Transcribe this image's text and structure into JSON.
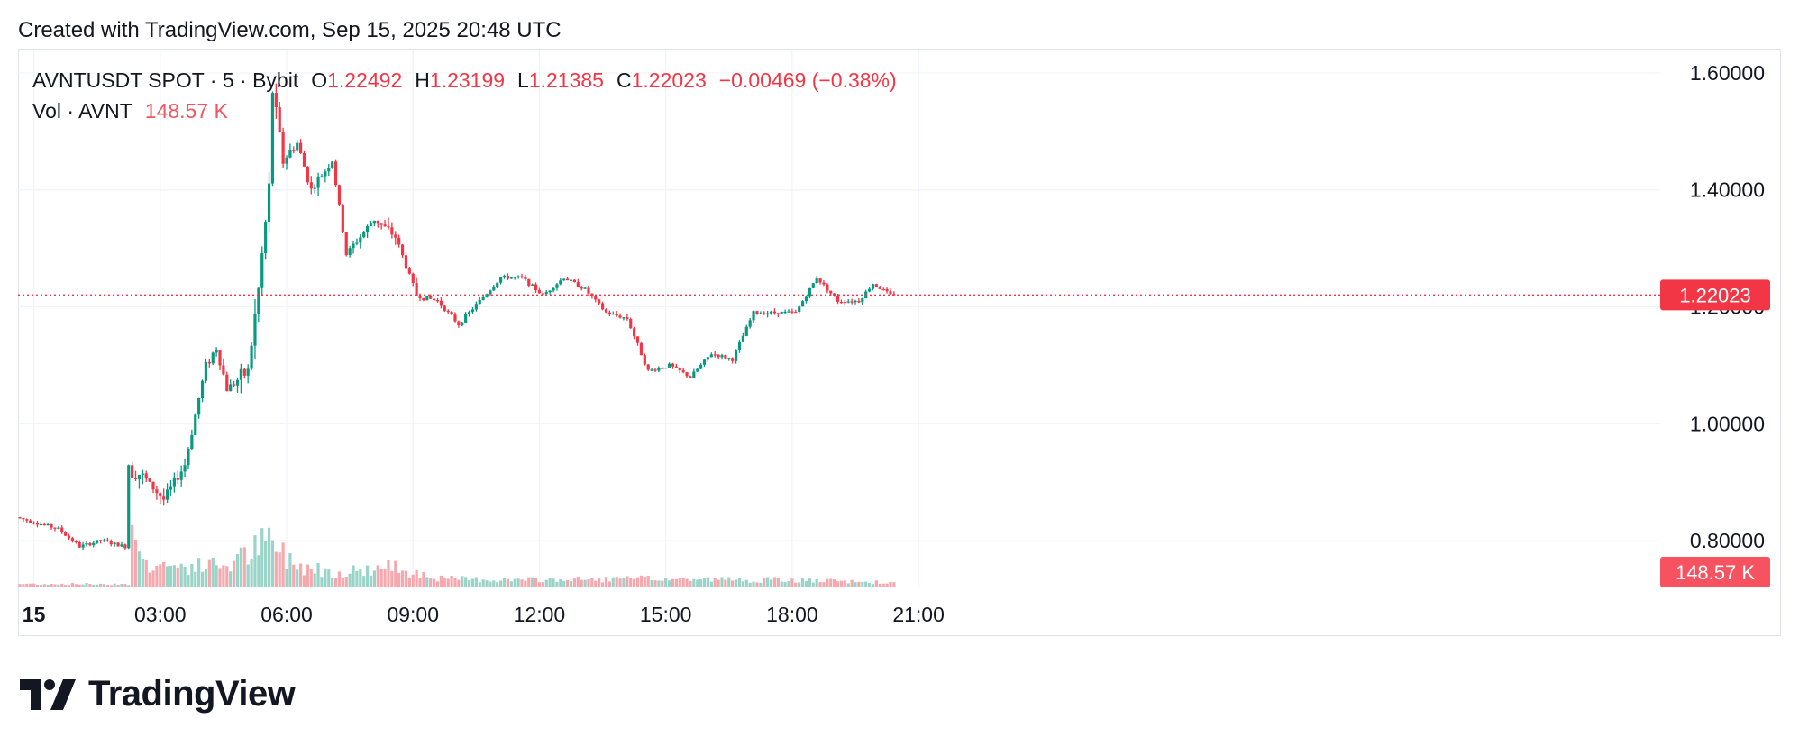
{
  "header": {
    "caption": "Created with TradingView.com, Sep 15, 2025 20:48 UTC"
  },
  "legend": {
    "symbol": "AVNTUSDT SPOT · 5 · Bybit",
    "open_label": "O",
    "open": "1.22492",
    "high_label": "H",
    "high": "1.23199",
    "low_label": "L",
    "low": "1.21385",
    "close_label": "C",
    "close": "1.22023",
    "change": "−0.00469 (−0.38%)",
    "vol_label": "Vol · AVNT",
    "vol_value": "148.57 K"
  },
  "price_axis": {
    "ticks": [
      "0.80000",
      "1.00000",
      "1.20000",
      "1.40000",
      "1.60000"
    ]
  },
  "time_axis": {
    "ticks": [
      "15",
      "03:00",
      "06:00",
      "09:00",
      "12:00",
      "15:00",
      "18:00",
      "21:00"
    ]
  },
  "badges": {
    "last_price": "1.22023",
    "last_volume": "148.57 K"
  },
  "footer": {
    "brand": "TradingView"
  },
  "colors": {
    "up": "#089981",
    "down": "#f23645",
    "grid": "#f0f3fa",
    "text": "#131722"
  },
  "chart_data": {
    "type": "candlestick",
    "symbol": "AVNTUSDT",
    "interval_minutes": 5,
    "price_range": [
      0.72,
      1.64
    ],
    "last_price": 1.22023,
    "anchors": [
      {
        "t": "00:00",
        "p": 0.84
      },
      {
        "t": "00:30",
        "p": 0.83
      },
      {
        "t": "01:00",
        "p": 0.82
      },
      {
        "t": "01:30",
        "p": 0.79
      },
      {
        "t": "02:00",
        "p": 0.8
      },
      {
        "t": "02:35",
        "p": 0.79
      },
      {
        "t": "02:40",
        "p": 0.93
      },
      {
        "t": "03:00",
        "p": 0.91
      },
      {
        "t": "03:30",
        "p": 0.87
      },
      {
        "t": "04:00",
        "p": 0.93
      },
      {
        "t": "04:30",
        "p": 1.1
      },
      {
        "t": "04:45",
        "p": 1.13
      },
      {
        "t": "05:00",
        "p": 1.06
      },
      {
        "t": "05:30",
        "p": 1.09
      },
      {
        "t": "05:45",
        "p": 1.23
      },
      {
        "t": "06:00",
        "p": 1.4
      },
      {
        "t": "06:05",
        "p": 1.57
      },
      {
        "t": "06:20",
        "p": 1.45
      },
      {
        "t": "06:40",
        "p": 1.48
      },
      {
        "t": "07:00",
        "p": 1.4
      },
      {
        "t": "07:30",
        "p": 1.45
      },
      {
        "t": "07:50",
        "p": 1.29
      },
      {
        "t": "08:30",
        "p": 1.35
      },
      {
        "t": "09:00",
        "p": 1.32
      },
      {
        "t": "09:30",
        "p": 1.22
      },
      {
        "t": "10:00",
        "p": 1.21
      },
      {
        "t": "10:30",
        "p": 1.17
      },
      {
        "t": "11:00",
        "p": 1.21
      },
      {
        "t": "11:30",
        "p": 1.25
      },
      {
        "t": "12:00",
        "p": 1.25
      },
      {
        "t": "12:30",
        "p": 1.22
      },
      {
        "t": "13:00",
        "p": 1.25
      },
      {
        "t": "13:30",
        "p": 1.23
      },
      {
        "t": "14:00",
        "p": 1.19
      },
      {
        "t": "14:30",
        "p": 1.18
      },
      {
        "t": "15:00",
        "p": 1.09
      },
      {
        "t": "15:30",
        "p": 1.1
      },
      {
        "t": "16:00",
        "p": 1.08
      },
      {
        "t": "16:30",
        "p": 1.12
      },
      {
        "t": "17:00",
        "p": 1.11
      },
      {
        "t": "17:30",
        "p": 1.19
      },
      {
        "t": "18:00",
        "p": 1.19
      },
      {
        "t": "18:30",
        "p": 1.19
      },
      {
        "t": "19:00",
        "p": 1.25
      },
      {
        "t": "19:30",
        "p": 1.21
      },
      {
        "t": "20:00",
        "p": 1.21
      },
      {
        "t": "20:20",
        "p": 1.24
      },
      {
        "t": "20:45",
        "p": 1.22
      }
    ],
    "volume_anchors": [
      {
        "t": "00:00",
        "v": 0.04
      },
      {
        "t": "02:35",
        "v": 0.04
      },
      {
        "t": "02:40",
        "v": 0.75
      },
      {
        "t": "03:00",
        "v": 0.35
      },
      {
        "t": "04:00",
        "v": 0.3
      },
      {
        "t": "05:00",
        "v": 0.35
      },
      {
        "t": "05:55",
        "v": 0.7
      },
      {
        "t": "06:30",
        "v": 0.35
      },
      {
        "t": "07:30",
        "v": 0.22
      },
      {
        "t": "09:00",
        "v": 0.3
      },
      {
        "t": "10:00",
        "v": 0.12
      },
      {
        "t": "12:00",
        "v": 0.1
      },
      {
        "t": "15:00",
        "v": 0.12
      },
      {
        "t": "18:00",
        "v": 0.1
      },
      {
        "t": "20:45",
        "v": 0.06
      }
    ]
  }
}
